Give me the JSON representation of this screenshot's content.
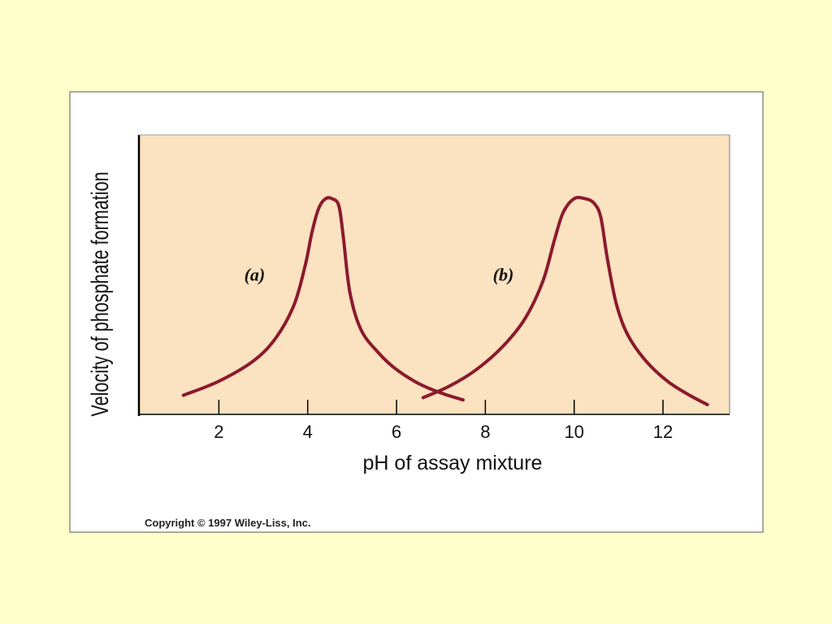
{
  "slide": {
    "background": "#ffffcc",
    "copyright": "Copyright © 1997 Wiley-Liss, Inc."
  },
  "chart_data": {
    "type": "line",
    "xlabel": "pH of assay mixture",
    "ylabel": "Velocity of phosphate formation",
    "xlim": [
      0.2,
      13.5
    ],
    "ylim": [
      0,
      1
    ],
    "x_ticks": [
      2,
      4,
      6,
      8,
      10,
      12
    ],
    "y_ticks": [],
    "grid": false,
    "plot_background": "#fbe2c0",
    "line_color": "#8b1a2e",
    "series": [
      {
        "label": "(a)",
        "x": [
          1.2,
          2.0,
          2.8,
          3.3,
          3.7,
          3.95,
          4.1,
          4.25,
          4.4,
          4.55,
          4.7,
          4.8,
          4.95,
          5.2,
          5.6,
          6.0,
          6.5,
          7.0,
          7.5
        ],
        "y": [
          0.04,
          0.1,
          0.19,
          0.29,
          0.43,
          0.6,
          0.74,
          0.84,
          0.88,
          0.88,
          0.85,
          0.72,
          0.48,
          0.32,
          0.22,
          0.15,
          0.09,
          0.05,
          0.02
        ]
      },
      {
        "label": "(b)",
        "x": [
          6.6,
          7.2,
          7.8,
          8.4,
          8.9,
          9.3,
          9.55,
          9.75,
          10.0,
          10.25,
          10.45,
          10.6,
          10.75,
          10.95,
          11.2,
          11.6,
          12.1,
          12.6,
          13.0
        ],
        "y": [
          0.03,
          0.08,
          0.15,
          0.25,
          0.37,
          0.53,
          0.7,
          0.82,
          0.88,
          0.88,
          0.86,
          0.8,
          0.62,
          0.43,
          0.3,
          0.19,
          0.1,
          0.04,
          0.0
        ]
      }
    ]
  }
}
